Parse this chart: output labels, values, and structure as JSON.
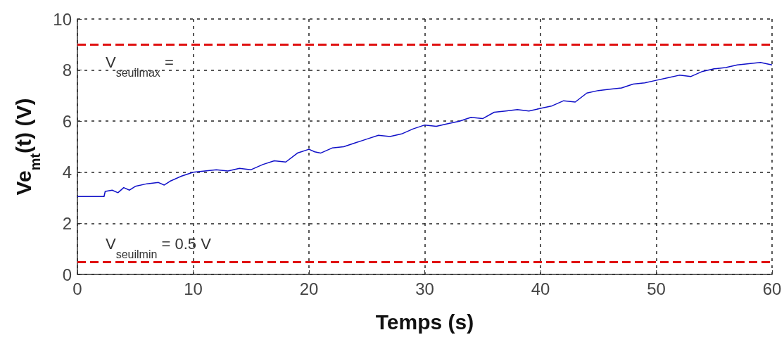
{
  "chart_data": {
    "type": "line",
    "xlabel": "Temps (s)",
    "ylabel": "Ve$_{mt}$(t) (V)",
    "x": [
      0,
      2.3,
      2.4,
      3,
      3.5,
      4,
      4.5,
      5,
      6,
      7,
      7.5,
      8,
      9,
      10,
      11,
      12,
      13,
      14,
      15,
      16,
      17,
      18,
      19,
      20,
      20.5,
      21,
      22,
      23,
      24,
      25,
      26,
      27,
      28,
      29,
      30,
      31,
      32,
      33,
      34,
      35,
      36,
      37,
      38,
      39,
      40,
      41,
      42,
      43,
      44,
      45,
      46,
      47,
      48,
      49,
      50,
      51,
      52,
      53,
      54,
      55,
      56,
      57,
      58,
      59,
      60
    ],
    "series": [
      {
        "color": "#1010c8",
        "values": [
          3.05,
          3.05,
          3.25,
          3.3,
          3.2,
          3.4,
          3.3,
          3.45,
          3.55,
          3.6,
          3.5,
          3.65,
          3.85,
          4.0,
          4.05,
          4.1,
          4.05,
          4.15,
          4.1,
          4.3,
          4.45,
          4.4,
          4.75,
          4.9,
          4.8,
          4.75,
          4.95,
          5.0,
          5.15,
          5.3,
          5.45,
          5.4,
          5.5,
          5.7,
          5.85,
          5.8,
          5.9,
          6.0,
          6.15,
          6.1,
          6.35,
          6.4,
          6.45,
          6.4,
          6.5,
          6.6,
          6.8,
          6.75,
          7.1,
          7.2,
          7.25,
          7.3,
          7.45,
          7.5,
          7.6,
          7.7,
          7.8,
          7.75,
          7.95,
          8.05,
          8.1,
          8.2,
          8.25,
          8.3,
          8.2
        ]
      }
    ],
    "xlim": [
      0,
      60
    ],
    "xticks": [
      0,
      10,
      20,
      30,
      40,
      50,
      60
    ],
    "ylim": [
      0,
      10
    ],
    "yticks": [
      0,
      2,
      4,
      6,
      8,
      10
    ],
    "grid": true,
    "line_style": "solid",
    "marker": "none",
    "ref_lines": [
      {
        "axis": "y",
        "value": 9,
        "label": "V$_{seuilmax}$ =",
        "color": "#e01010",
        "line_style": "dashed"
      },
      {
        "axis": "y",
        "value": 0.5,
        "label": "V$_{seuilmin}$ = 0.5 V",
        "color": "#e01010",
        "line_style": "dashed"
      }
    ]
  }
}
